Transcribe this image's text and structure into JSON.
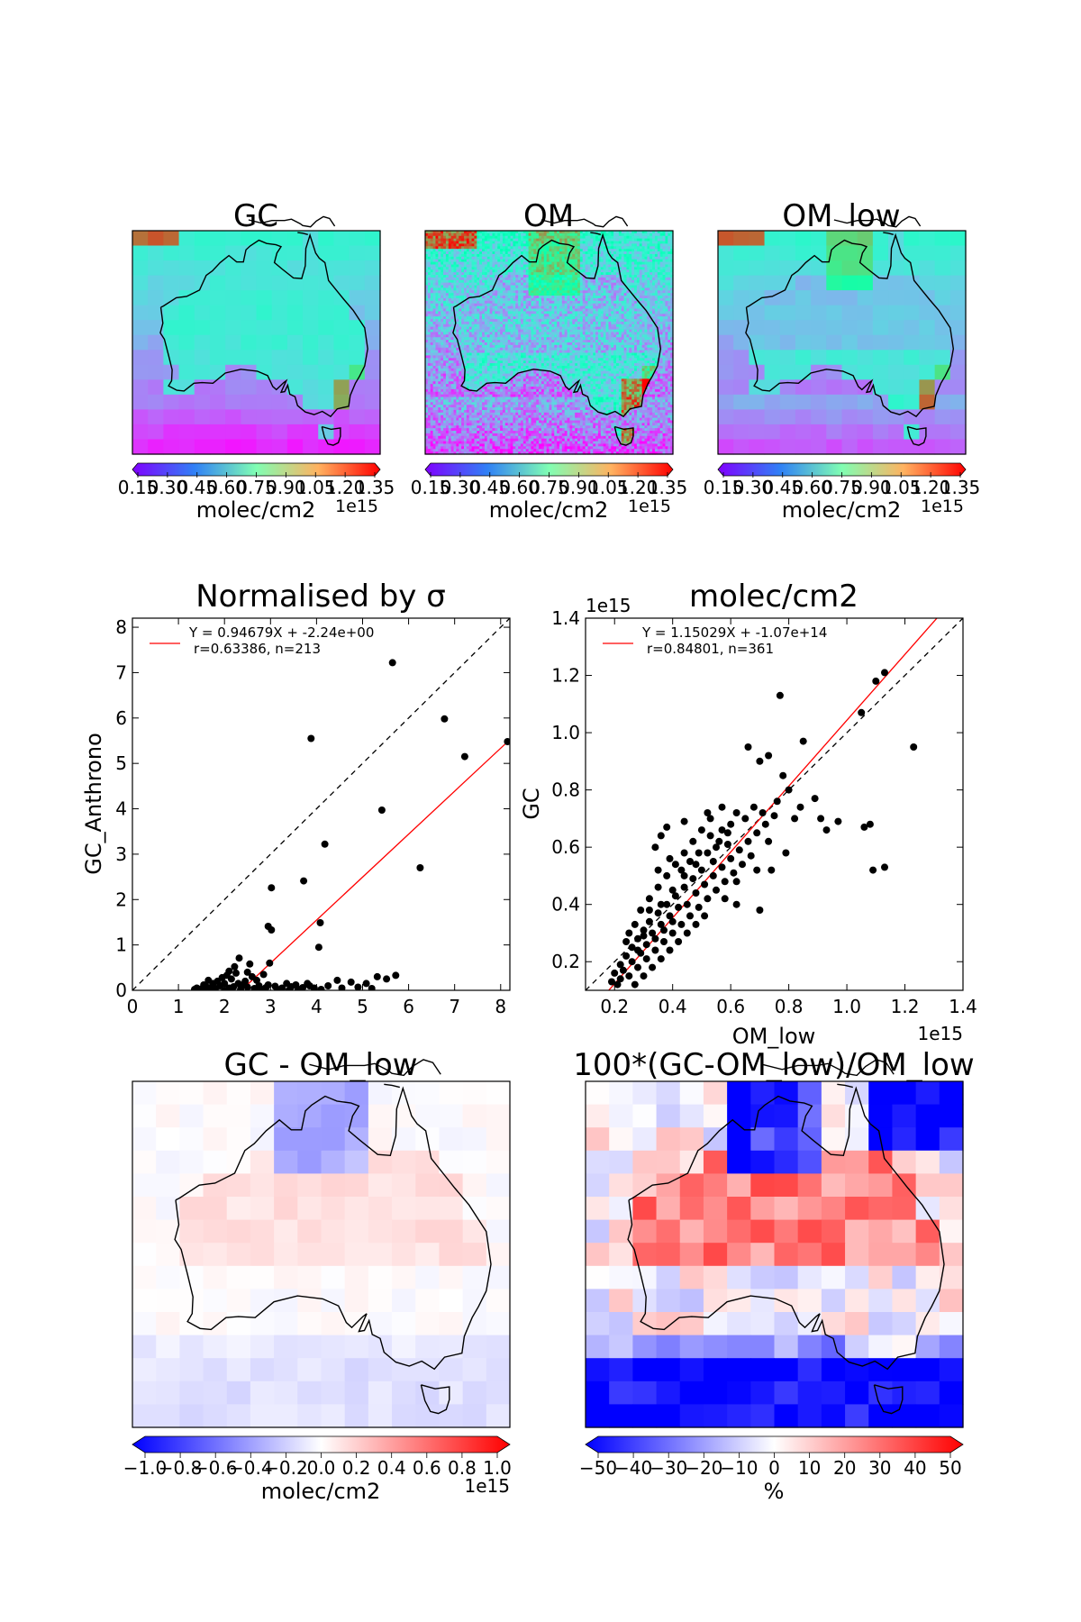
{
  "chart_data": [
    {
      "type": "heatmap",
      "title": "GC",
      "colorbar": {
        "ticks": [
          "0.15",
          "0.30",
          "0.45",
          "0.60",
          "0.75",
          "0.90",
          "1.05",
          "1.20",
          "1.35"
        ],
        "label": "molec/cm2",
        "offset": "1e15",
        "colormap": "rainbow",
        "range": [
          0.15,
          1.35
        ]
      }
    },
    {
      "type": "heatmap",
      "title": "OM",
      "colorbar": {
        "ticks": [
          "0.15",
          "0.30",
          "0.45",
          "0.60",
          "0.75",
          "0.90",
          "1.05",
          "1.20",
          "1.35"
        ],
        "label": "molec/cm2",
        "offset": "1e15",
        "colormap": "rainbow",
        "range": [
          0.15,
          1.35
        ]
      }
    },
    {
      "type": "heatmap",
      "title": "OM_low",
      "colorbar": {
        "ticks": [
          "0.15",
          "0.30",
          "0.45",
          "0.60",
          "0.75",
          "0.90",
          "1.05",
          "1.20",
          "1.35"
        ],
        "label": "molec/cm2",
        "offset": "1e15",
        "colormap": "rainbow",
        "range": [
          0.15,
          1.35
        ]
      }
    },
    {
      "type": "scatter",
      "title": "Normalised by σ",
      "ylabel": "GC_Anthrono",
      "xlabel": "",
      "xlim": [
        0,
        8.2
      ],
      "ylim": [
        0,
        8.2
      ],
      "xticks": [
        0,
        1,
        2,
        3,
        4,
        5,
        6,
        7,
        8
      ],
      "yticks": [
        0,
        1,
        2,
        3,
        4,
        5,
        6,
        7,
        8
      ],
      "legend": {
        "line1": "Y = 0.94679X + -2.24e+00",
        "line2": "r=0.63386, n=213",
        "placement": "top-left"
      },
      "fit": {
        "slope": 0.94679,
        "intercept": -2.24
      },
      "one_to_one": true,
      "points": [
        [
          5.65,
          7.22
        ],
        [
          6.78,
          5.98
        ],
        [
          7.22,
          5.15
        ],
        [
          3.88,
          5.55
        ],
        [
          5.42,
          3.97
        ],
        [
          4.18,
          3.22
        ],
        [
          6.25,
          2.7
        ],
        [
          3.02,
          2.26
        ],
        [
          3.72,
          2.41
        ],
        [
          4.08,
          1.49
        ],
        [
          2.95,
          1.41
        ],
        [
          3.02,
          1.33
        ],
        [
          4.05,
          0.95
        ],
        [
          2.98,
          0.6
        ],
        [
          2.32,
          0.71
        ],
        [
          2.55,
          0.58
        ],
        [
          2.22,
          0.52
        ],
        [
          8.15,
          5.48
        ],
        [
          5.72,
          0.33
        ],
        [
          5.52,
          0.25
        ],
        [
          5.32,
          0.3
        ],
        [
          4.75,
          0.18
        ],
        [
          5.08,
          0.15
        ],
        [
          4.45,
          0.22
        ],
        [
          4.25,
          0.1
        ],
        [
          3.85,
          0.1
        ],
        [
          3.7,
          0.06
        ],
        [
          3.45,
          0.08
        ],
        [
          3.25,
          0.05
        ],
        [
          3.1,
          0.09
        ],
        [
          2.9,
          0.06
        ],
        [
          2.75,
          0.1
        ],
        [
          2.65,
          0.04
        ],
        [
          2.5,
          0.07
        ],
        [
          2.4,
          0.12
        ],
        [
          2.2,
          0.08
        ],
        [
          2.1,
          0.05
        ],
        [
          2.0,
          0.15
        ],
        [
          1.9,
          0.1
        ],
        [
          1.8,
          0.04
        ],
        [
          1.7,
          0.06
        ],
        [
          1.6,
          0.08
        ],
        [
          1.5,
          0.03
        ],
        [
          1.4,
          0.05
        ],
        [
          1.35,
          0.02
        ],
        [
          1.95,
          0.28
        ],
        [
          2.05,
          0.33
        ],
        [
          2.15,
          0.25
        ],
        [
          2.25,
          0.38
        ],
        [
          1.85,
          0.2
        ],
        [
          1.75,
          0.15
        ],
        [
          2.6,
          0.3
        ],
        [
          2.7,
          0.22
        ],
        [
          2.85,
          0.35
        ],
        [
          3.35,
          0.15
        ],
        [
          3.55,
          0.12
        ],
        [
          3.95,
          0.05
        ],
        [
          4.55,
          0.05
        ],
        [
          4.9,
          0.07
        ],
        [
          5.2,
          0.04
        ],
        [
          2.45,
          0.2
        ],
        [
          2.35,
          0.02
        ],
        [
          2.8,
          0.02
        ],
        [
          3.15,
          0.02
        ],
        [
          3.6,
          0.02
        ],
        [
          1.65,
          0.22
        ],
        [
          2.3,
          0.15
        ],
        [
          2.1,
          0.42
        ],
        [
          2.95,
          0.12
        ],
        [
          3.8,
          0.15
        ],
        [
          1.55,
          0.12
        ],
        [
          2.5,
          0.4
        ],
        [
          2.0,
          0.0
        ],
        [
          3.4,
          0.0
        ],
        [
          4.1,
          0.02
        ]
      ]
    },
    {
      "type": "scatter",
      "title": "molec/cm2",
      "ylabel": "GC",
      "xlabel": "OM_low",
      "offset": "1e15",
      "xlim": [
        0.1,
        1.4
      ],
      "ylim": [
        0.1,
        1.4
      ],
      "xticks": [
        "0.2",
        "0.4",
        "0.6",
        "0.8",
        "1.0",
        "1.2",
        "1.4"
      ],
      "yticks": [
        "0.2",
        "0.4",
        "0.6",
        "0.8",
        "1.0",
        "1.2",
        "1.4"
      ],
      "legend": {
        "line1": "Y = 1.15029X + -1.07e+14",
        "line2": "r=0.84801, n=361",
        "placement": "top-left"
      },
      "fit": {
        "slope": 1.15029,
        "intercept": -0.107
      },
      "one_to_one": true,
      "points": [
        [
          0.77,
          1.13
        ],
        [
          1.1,
          1.18
        ],
        [
          1.13,
          1.21
        ],
        [
          1.05,
          1.07
        ],
        [
          1.23,
          0.95
        ],
        [
          0.85,
          0.97
        ],
        [
          0.66,
          0.95
        ],
        [
          0.73,
          0.92
        ],
        [
          0.7,
          0.9
        ],
        [
          0.78,
          0.85
        ],
        [
          0.89,
          0.77
        ],
        [
          0.91,
          0.7
        ],
        [
          0.97,
          0.69
        ],
        [
          1.06,
          0.67
        ],
        [
          1.08,
          0.68
        ],
        [
          1.09,
          0.52
        ],
        [
          1.13,
          0.53
        ],
        [
          0.84,
          0.74
        ],
        [
          0.93,
          0.66
        ],
        [
          0.79,
          0.58
        ],
        [
          0.74,
          0.52
        ],
        [
          0.69,
          0.52
        ],
        [
          0.7,
          0.38
        ],
        [
          0.62,
          0.48
        ],
        [
          0.62,
          0.72
        ],
        [
          0.57,
          0.74
        ],
        [
          0.52,
          0.72
        ],
        [
          0.44,
          0.69
        ],
        [
          0.38,
          0.67
        ],
        [
          0.36,
          0.64
        ],
        [
          0.34,
          0.6
        ],
        [
          0.49,
          0.58
        ],
        [
          0.53,
          0.64
        ],
        [
          0.57,
          0.66
        ],
        [
          0.59,
          0.61
        ],
        [
          0.54,
          0.55
        ],
        [
          0.5,
          0.52
        ],
        [
          0.47,
          0.49
        ],
        [
          0.44,
          0.46
        ],
        [
          0.41,
          0.43
        ],
        [
          0.38,
          0.4
        ],
        [
          0.35,
          0.37
        ],
        [
          0.32,
          0.34
        ],
        [
          0.3,
          0.31
        ],
        [
          0.28,
          0.28
        ],
        [
          0.26,
          0.25
        ],
        [
          0.24,
          0.22
        ],
        [
          0.22,
          0.19
        ],
        [
          0.2,
          0.16
        ],
        [
          0.19,
          0.13
        ],
        [
          0.25,
          0.15
        ],
        [
          0.28,
          0.18
        ],
        [
          0.31,
          0.21
        ],
        [
          0.34,
          0.24
        ],
        [
          0.37,
          0.27
        ],
        [
          0.4,
          0.3
        ],
        [
          0.43,
          0.33
        ],
        [
          0.46,
          0.36
        ],
        [
          0.49,
          0.39
        ],
        [
          0.52,
          0.42
        ],
        [
          0.55,
          0.45
        ],
        [
          0.58,
          0.48
        ],
        [
          0.61,
          0.51
        ],
        [
          0.64,
          0.54
        ],
        [
          0.67,
          0.57
        ],
        [
          0.29,
          0.38
        ],
        [
          0.32,
          0.42
        ],
        [
          0.35,
          0.46
        ],
        [
          0.38,
          0.5
        ],
        [
          0.41,
          0.54
        ],
        [
          0.44,
          0.58
        ],
        [
          0.47,
          0.62
        ],
        [
          0.5,
          0.66
        ],
        [
          0.53,
          0.7
        ],
        [
          0.27,
          0.33
        ],
        [
          0.3,
          0.29
        ],
        [
          0.33,
          0.3
        ],
        [
          0.36,
          0.33
        ],
        [
          0.39,
          0.36
        ],
        [
          0.42,
          0.39
        ],
        [
          0.45,
          0.4
        ],
        [
          0.48,
          0.44
        ],
        [
          0.51,
          0.47
        ],
        [
          0.54,
          0.5
        ],
        [
          0.57,
          0.53
        ],
        [
          0.6,
          0.56
        ],
        [
          0.63,
          0.59
        ],
        [
          0.66,
          0.62
        ],
        [
          0.69,
          0.65
        ],
        [
          0.72,
          0.68
        ],
        [
          0.75,
          0.71
        ],
        [
          0.31,
          0.26
        ],
        [
          0.34,
          0.28
        ],
        [
          0.37,
          0.31
        ],
        [
          0.4,
          0.34
        ],
        [
          0.23,
          0.17
        ],
        [
          0.26,
          0.2
        ],
        [
          0.29,
          0.23
        ],
        [
          0.22,
          0.14
        ],
        [
          0.21,
          0.12
        ],
        [
          0.27,
          0.12
        ],
        [
          0.3,
          0.15
        ],
        [
          0.33,
          0.18
        ],
        [
          0.36,
          0.21
        ],
        [
          0.39,
          0.24
        ],
        [
          0.42,
          0.27
        ],
        [
          0.45,
          0.3
        ],
        [
          0.48,
          0.33
        ],
        [
          0.51,
          0.36
        ],
        [
          0.35,
          0.52
        ],
        [
          0.39,
          0.56
        ],
        [
          0.43,
          0.52
        ],
        [
          0.46,
          0.55
        ],
        [
          0.55,
          0.6
        ],
        [
          0.6,
          0.68
        ],
        [
          0.65,
          0.7
        ],
        [
          0.68,
          0.74
        ],
        [
          0.71,
          0.72
        ],
        [
          0.76,
          0.76
        ],
        [
          0.8,
          0.8
        ],
        [
          0.82,
          0.7
        ],
        [
          0.73,
          0.62
        ],
        [
          0.62,
          0.4
        ],
        [
          0.58,
          0.42
        ],
        [
          0.25,
          0.3
        ],
        [
          0.24,
          0.27
        ],
        [
          0.28,
          0.24
        ],
        [
          0.32,
          0.38
        ],
        [
          0.36,
          0.4
        ],
        [
          0.4,
          0.45
        ],
        [
          0.44,
          0.5
        ],
        [
          0.48,
          0.54
        ],
        [
          0.52,
          0.58
        ],
        [
          0.56,
          0.62
        ],
        [
          0.59,
          0.65
        ]
      ]
    },
    {
      "type": "heatmap",
      "title": "GC - OM_low",
      "colorbar": {
        "ticks": [
          "−1.0",
          "−0.8",
          "−0.6",
          "−0.4",
          "−0.2",
          "0.0",
          "0.2",
          "0.4",
          "0.6",
          "0.8",
          "1.0"
        ],
        "label": "molec/cm2",
        "offset": "1e15",
        "colormap": "bwr",
        "range": [
          -1.0,
          1.0
        ]
      }
    },
    {
      "type": "heatmap",
      "title": "100*(GC-OM_low)/OM_low",
      "colorbar": {
        "ticks": [
          "−50",
          "−40",
          "−30",
          "−20",
          "−10",
          "0",
          "10",
          "20",
          "30",
          "40",
          "50"
        ],
        "label": "%",
        "offset": "",
        "colormap": "bwr",
        "range": [
          -50,
          50
        ]
      }
    }
  ]
}
